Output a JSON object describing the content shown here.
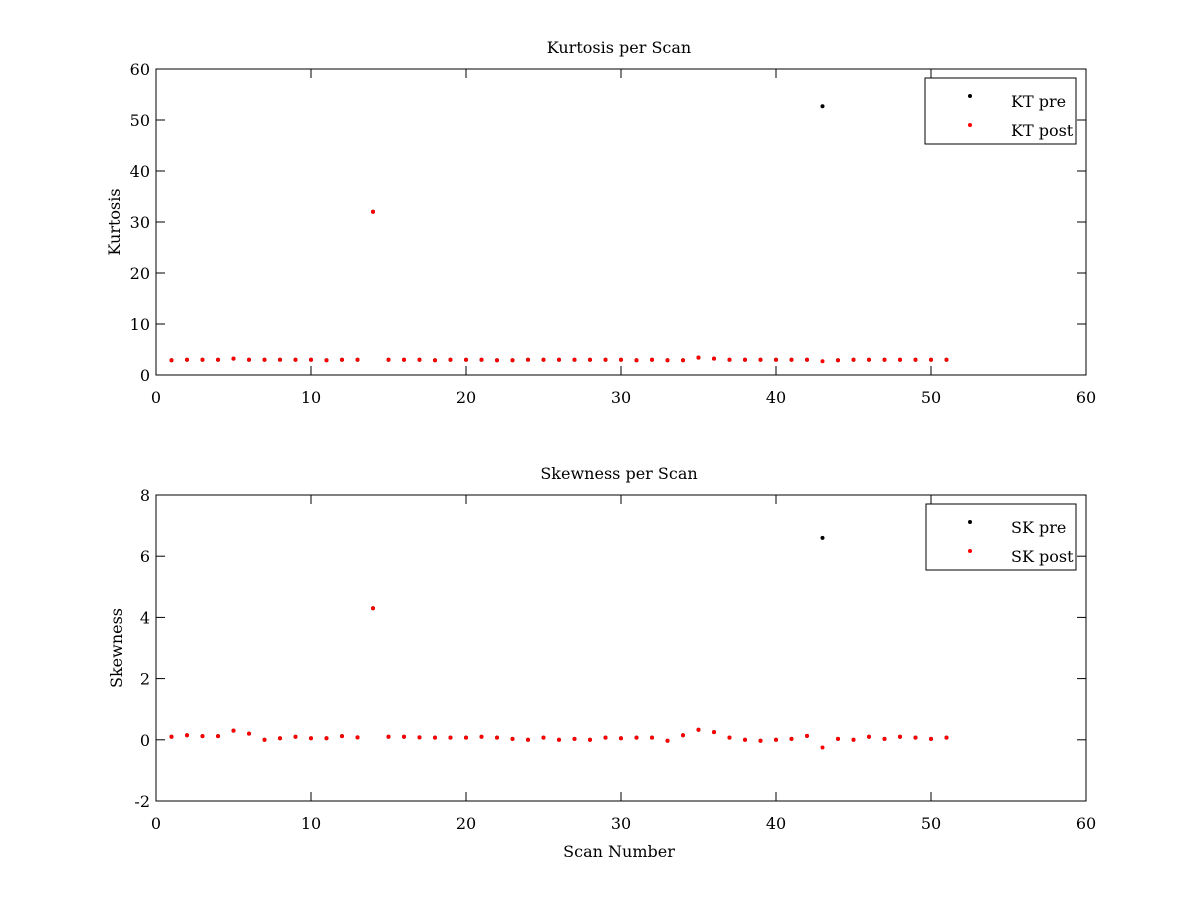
{
  "chart_data": [
    {
      "type": "scatter",
      "title": "Kurtosis per Scan",
      "xlabel": "",
      "ylabel": "Kurtosis",
      "xlim": [
        0,
        60
      ],
      "ylim": [
        0,
        60
      ],
      "xticks": [
        0,
        10,
        20,
        30,
        40,
        50,
        60
      ],
      "yticks": [
        0,
        10,
        20,
        30,
        40,
        50,
        60
      ],
      "grid": false,
      "legend_position": "top-right",
      "series": [
        {
          "name": "KT pre",
          "color": "#000000",
          "points": [
            [
              1,
              2.9
            ],
            [
              2,
              3.0
            ],
            [
              3,
              3.0
            ],
            [
              4,
              3.0
            ],
            [
              5,
              3.2
            ],
            [
              6,
              3.0
            ],
            [
              7,
              3.0
            ],
            [
              8,
              3.0
            ],
            [
              9,
              3.0
            ],
            [
              10,
              3.0
            ],
            [
              11,
              2.9
            ],
            [
              12,
              3.0
            ],
            [
              13,
              3.0
            ],
            [
              14,
              32.0
            ],
            [
              15,
              3.0
            ],
            [
              16,
              3.0
            ],
            [
              17,
              3.0
            ],
            [
              18,
              2.9
            ],
            [
              19,
              3.0
            ],
            [
              20,
              3.0
            ],
            [
              21,
              3.0
            ],
            [
              22,
              2.9
            ],
            [
              23,
              2.9
            ],
            [
              24,
              3.0
            ],
            [
              25,
              3.0
            ],
            [
              26,
              3.0
            ],
            [
              27,
              3.0
            ],
            [
              28,
              3.0
            ],
            [
              29,
              3.0
            ],
            [
              30,
              3.0
            ],
            [
              31,
              2.9
            ],
            [
              32,
              3.0
            ],
            [
              33,
              2.9
            ],
            [
              34,
              2.9
            ],
            [
              35,
              3.4
            ],
            [
              36,
              3.2
            ],
            [
              37,
              3.0
            ],
            [
              38,
              3.0
            ],
            [
              39,
              3.0
            ],
            [
              40,
              3.0
            ],
            [
              41,
              3.0
            ],
            [
              42,
              3.0
            ],
            [
              43,
              52.7
            ],
            [
              44,
              2.9
            ],
            [
              45,
              3.0
            ],
            [
              46,
              3.0
            ],
            [
              47,
              3.0
            ],
            [
              48,
              3.0
            ],
            [
              49,
              3.0
            ],
            [
              50,
              3.0
            ],
            [
              51,
              3.0
            ]
          ]
        },
        {
          "name": "KT post",
          "color": "#ff0000",
          "points": [
            [
              1,
              2.9
            ],
            [
              2,
              3.0
            ],
            [
              3,
              3.0
            ],
            [
              4,
              3.0
            ],
            [
              5,
              3.2
            ],
            [
              6,
              3.0
            ],
            [
              7,
              3.0
            ],
            [
              8,
              3.0
            ],
            [
              9,
              3.0
            ],
            [
              10,
              3.0
            ],
            [
              11,
              2.9
            ],
            [
              12,
              3.0
            ],
            [
              13,
              3.0
            ],
            [
              14,
              32.0
            ],
            [
              15,
              3.0
            ],
            [
              16,
              3.0
            ],
            [
              17,
              3.0
            ],
            [
              18,
              2.9
            ],
            [
              19,
              3.0
            ],
            [
              20,
              3.0
            ],
            [
              21,
              3.0
            ],
            [
              22,
              2.9
            ],
            [
              23,
              2.9
            ],
            [
              24,
              3.0
            ],
            [
              25,
              3.0
            ],
            [
              26,
              3.0
            ],
            [
              27,
              3.0
            ],
            [
              28,
              3.0
            ],
            [
              29,
              3.0
            ],
            [
              30,
              3.0
            ],
            [
              31,
              2.9
            ],
            [
              32,
              3.0
            ],
            [
              33,
              2.9
            ],
            [
              34,
              2.9
            ],
            [
              35,
              3.4
            ],
            [
              36,
              3.2
            ],
            [
              37,
              3.0
            ],
            [
              38,
              3.0
            ],
            [
              39,
              3.0
            ],
            [
              40,
              3.0
            ],
            [
              41,
              3.0
            ],
            [
              42,
              3.0
            ],
            [
              43,
              2.7
            ],
            [
              44,
              2.9
            ],
            [
              45,
              3.0
            ],
            [
              46,
              3.0
            ],
            [
              47,
              3.0
            ],
            [
              48,
              3.0
            ],
            [
              49,
              3.0
            ],
            [
              50,
              3.0
            ],
            [
              51,
              3.0
            ]
          ]
        }
      ]
    },
    {
      "type": "scatter",
      "title": "Skewness per Scan",
      "xlabel": "Scan Number",
      "ylabel": "Skewness",
      "xlim": [
        0,
        60
      ],
      "ylim": [
        -2,
        8
      ],
      "xticks": [
        0,
        10,
        20,
        30,
        40,
        50,
        60
      ],
      "yticks": [
        -2,
        0,
        2,
        4,
        6,
        8
      ],
      "grid": false,
      "legend_position": "top-right",
      "series": [
        {
          "name": "SK pre",
          "color": "#000000",
          "points": [
            [
              1,
              0.1
            ],
            [
              2,
              0.15
            ],
            [
              3,
              0.12
            ],
            [
              4,
              0.12
            ],
            [
              5,
              0.3
            ],
            [
              6,
              0.2
            ],
            [
              7,
              0.0
            ],
            [
              8,
              0.05
            ],
            [
              9,
              0.1
            ],
            [
              10,
              0.05
            ],
            [
              11,
              0.05
            ],
            [
              12,
              0.12
            ],
            [
              13,
              0.08
            ],
            [
              14,
              4.3
            ],
            [
              15,
              0.1
            ],
            [
              16,
              0.1
            ],
            [
              17,
              0.08
            ],
            [
              18,
              0.07
            ],
            [
              19,
              0.07
            ],
            [
              20,
              0.07
            ],
            [
              21,
              0.1
            ],
            [
              22,
              0.07
            ],
            [
              23,
              0.03
            ],
            [
              24,
              0.0
            ],
            [
              25,
              0.07
            ],
            [
              26,
              0.0
            ],
            [
              27,
              0.03
            ],
            [
              28,
              0.0
            ],
            [
              29,
              0.07
            ],
            [
              30,
              0.05
            ],
            [
              31,
              0.07
            ],
            [
              32,
              0.07
            ],
            [
              33,
              -0.03
            ],
            [
              34,
              0.15
            ],
            [
              35,
              0.33
            ],
            [
              36,
              0.25
            ],
            [
              37,
              0.07
            ],
            [
              38,
              0.0
            ],
            [
              39,
              -0.03
            ],
            [
              40,
              0.0
            ],
            [
              41,
              0.03
            ],
            [
              42,
              0.13
            ],
            [
              43,
              6.6
            ],
            [
              44,
              0.03
            ],
            [
              45,
              0.0
            ],
            [
              46,
              0.1
            ],
            [
              47,
              0.03
            ],
            [
              48,
              0.1
            ],
            [
              49,
              0.07
            ],
            [
              50,
              0.03
            ],
            [
              51,
              0.07
            ]
          ]
        },
        {
          "name": "SK post",
          "color": "#ff0000",
          "points": [
            [
              1,
              0.1
            ],
            [
              2,
              0.15
            ],
            [
              3,
              0.12
            ],
            [
              4,
              0.12
            ],
            [
              5,
              0.3
            ],
            [
              6,
              0.2
            ],
            [
              7,
              0.0
            ],
            [
              8,
              0.05
            ],
            [
              9,
              0.1
            ],
            [
              10,
              0.05
            ],
            [
              11,
              0.05
            ],
            [
              12,
              0.12
            ],
            [
              13,
              0.08
            ],
            [
              14,
              4.3
            ],
            [
              15,
              0.1
            ],
            [
              16,
              0.1
            ],
            [
              17,
              0.08
            ],
            [
              18,
              0.07
            ],
            [
              19,
              0.07
            ],
            [
              20,
              0.07
            ],
            [
              21,
              0.1
            ],
            [
              22,
              0.07
            ],
            [
              23,
              0.03
            ],
            [
              24,
              0.0
            ],
            [
              25,
              0.07
            ],
            [
              26,
              0.0
            ],
            [
              27,
              0.03
            ],
            [
              28,
              0.0
            ],
            [
              29,
              0.07
            ],
            [
              30,
              0.05
            ],
            [
              31,
              0.07
            ],
            [
              32,
              0.07
            ],
            [
              33,
              -0.03
            ],
            [
              34,
              0.15
            ],
            [
              35,
              0.33
            ],
            [
              36,
              0.25
            ],
            [
              37,
              0.07
            ],
            [
              38,
              0.0
            ],
            [
              39,
              -0.03
            ],
            [
              40,
              0.0
            ],
            [
              41,
              0.03
            ],
            [
              42,
              0.13
            ],
            [
              43,
              -0.25
            ],
            [
              44,
              0.03
            ],
            [
              45,
              0.0
            ],
            [
              46,
              0.1
            ],
            [
              47,
              0.03
            ],
            [
              48,
              0.1
            ],
            [
              49,
              0.07
            ],
            [
              50,
              0.03
            ],
            [
              51,
              0.07
            ]
          ]
        }
      ]
    }
  ]
}
